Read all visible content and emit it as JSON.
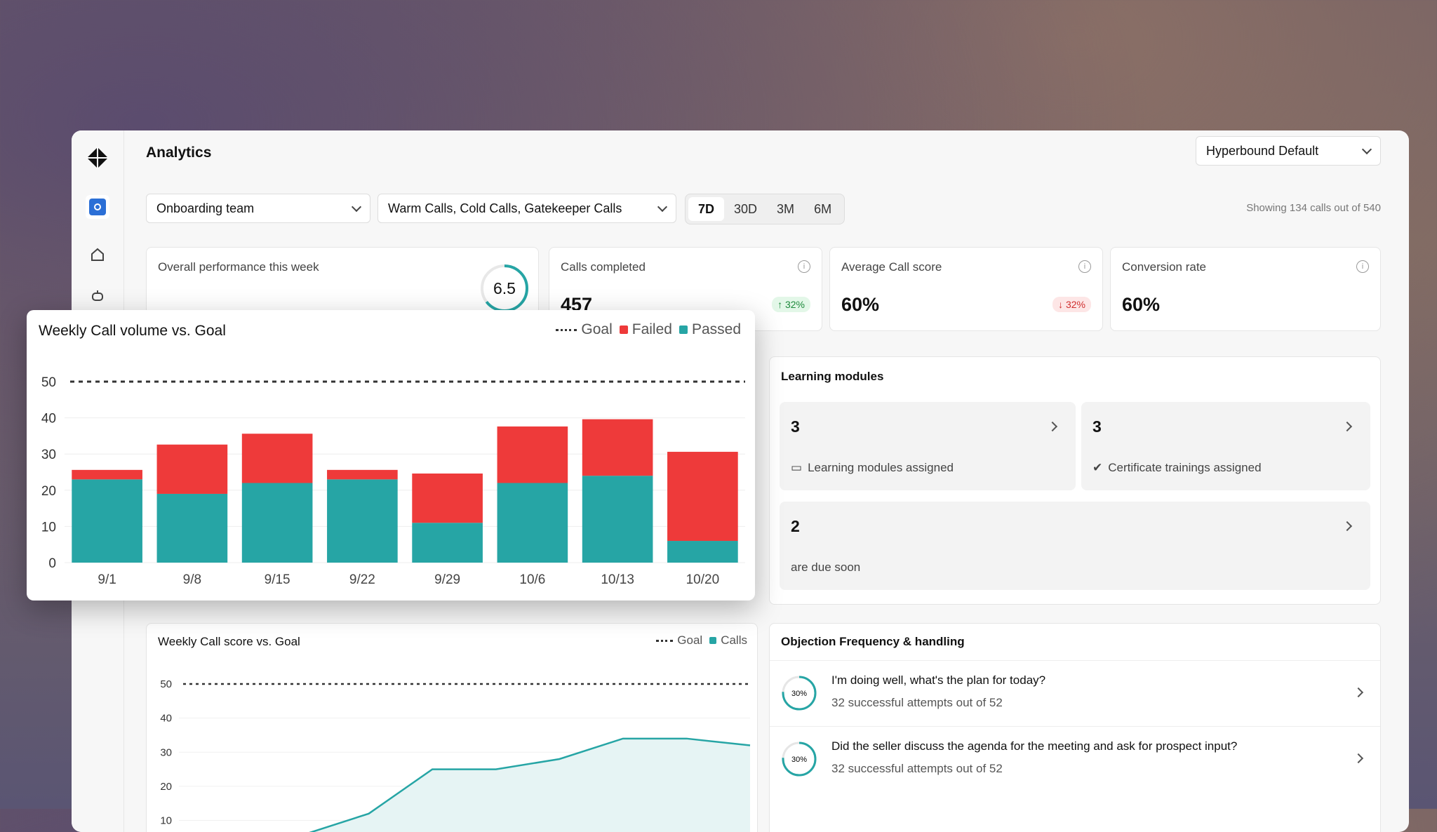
{
  "header": {
    "title": "Analytics",
    "workspace_select": "Hyperbound Default"
  },
  "filters": {
    "team": "Onboarding team",
    "call_types": "Warm Calls, Cold Calls, Gatekeeper Calls",
    "ranges": [
      "7D",
      "30D",
      "3M",
      "6M"
    ],
    "active_range": "7D",
    "showing": "Showing 134 calls out of 540"
  },
  "stats": {
    "overall": {
      "label": "Overall performance this week",
      "score": "6.5"
    },
    "calls": {
      "label": "Calls completed",
      "value": "457",
      "badge": "↑ 32%"
    },
    "avg": {
      "label": "Average Call score",
      "value": "60%",
      "badge": "↓ 32%"
    },
    "conversion": {
      "label": "Conversion rate",
      "value": "60%"
    }
  },
  "learning": {
    "title": "Learning modules",
    "modules": {
      "count": "3",
      "label": "Learning modules assigned"
    },
    "certs": {
      "count": "3",
      "label": "Certificate trainings assigned"
    },
    "due": {
      "count": "2",
      "label": "are due soon"
    }
  },
  "objections": {
    "title": "Objection Frequency & handling",
    "items": [
      {
        "pct": "30%",
        "question": "I'm doing well, what's the plan for today?",
        "stats": "32 successful attempts out of 52"
      },
      {
        "pct": "30%",
        "question": "Did the seller discuss the agenda for the meeting and ask for prospect input?",
        "stats": "32 successful attempts out of 52"
      }
    ]
  },
  "chart_data": [
    {
      "type": "bar",
      "title": "Weekly Call volume vs. Goal",
      "categories": [
        "9/1",
        "9/8",
        "9/15",
        "9/22",
        "9/29",
        "10/6",
        "10/13",
        "10/20"
      ],
      "series": [
        {
          "name": "Passed",
          "values": [
            23,
            19,
            22,
            23,
            11,
            22,
            24,
            6
          ],
          "color": "#26a5a5"
        },
        {
          "name": "Failed",
          "values": [
            3,
            14,
            14,
            3,
            14,
            16,
            16,
            25
          ],
          "color": "#ee3a3a"
        }
      ],
      "goal": {
        "name": "Goal",
        "value": 50
      },
      "yticks": [
        0,
        10,
        20,
        30,
        40,
        50
      ],
      "ylim": [
        0,
        50
      ],
      "stacked": true
    },
    {
      "type": "area",
      "title": "Weekly Call score vs. Goal",
      "series": [
        {
          "name": "Calls",
          "values": [
            4,
            12,
            25,
            25,
            28,
            34,
            34,
            32
          ],
          "color": "#26a5a5"
        }
      ],
      "goal": {
        "name": "Goal",
        "value": 50
      },
      "yticks": [
        10,
        20,
        30,
        40,
        50
      ],
      "ylim": [
        0,
        50
      ]
    }
  ],
  "colors": {
    "passed": "#26a5a5",
    "failed": "#ee3a3a",
    "accent": "#2b6fd6"
  }
}
